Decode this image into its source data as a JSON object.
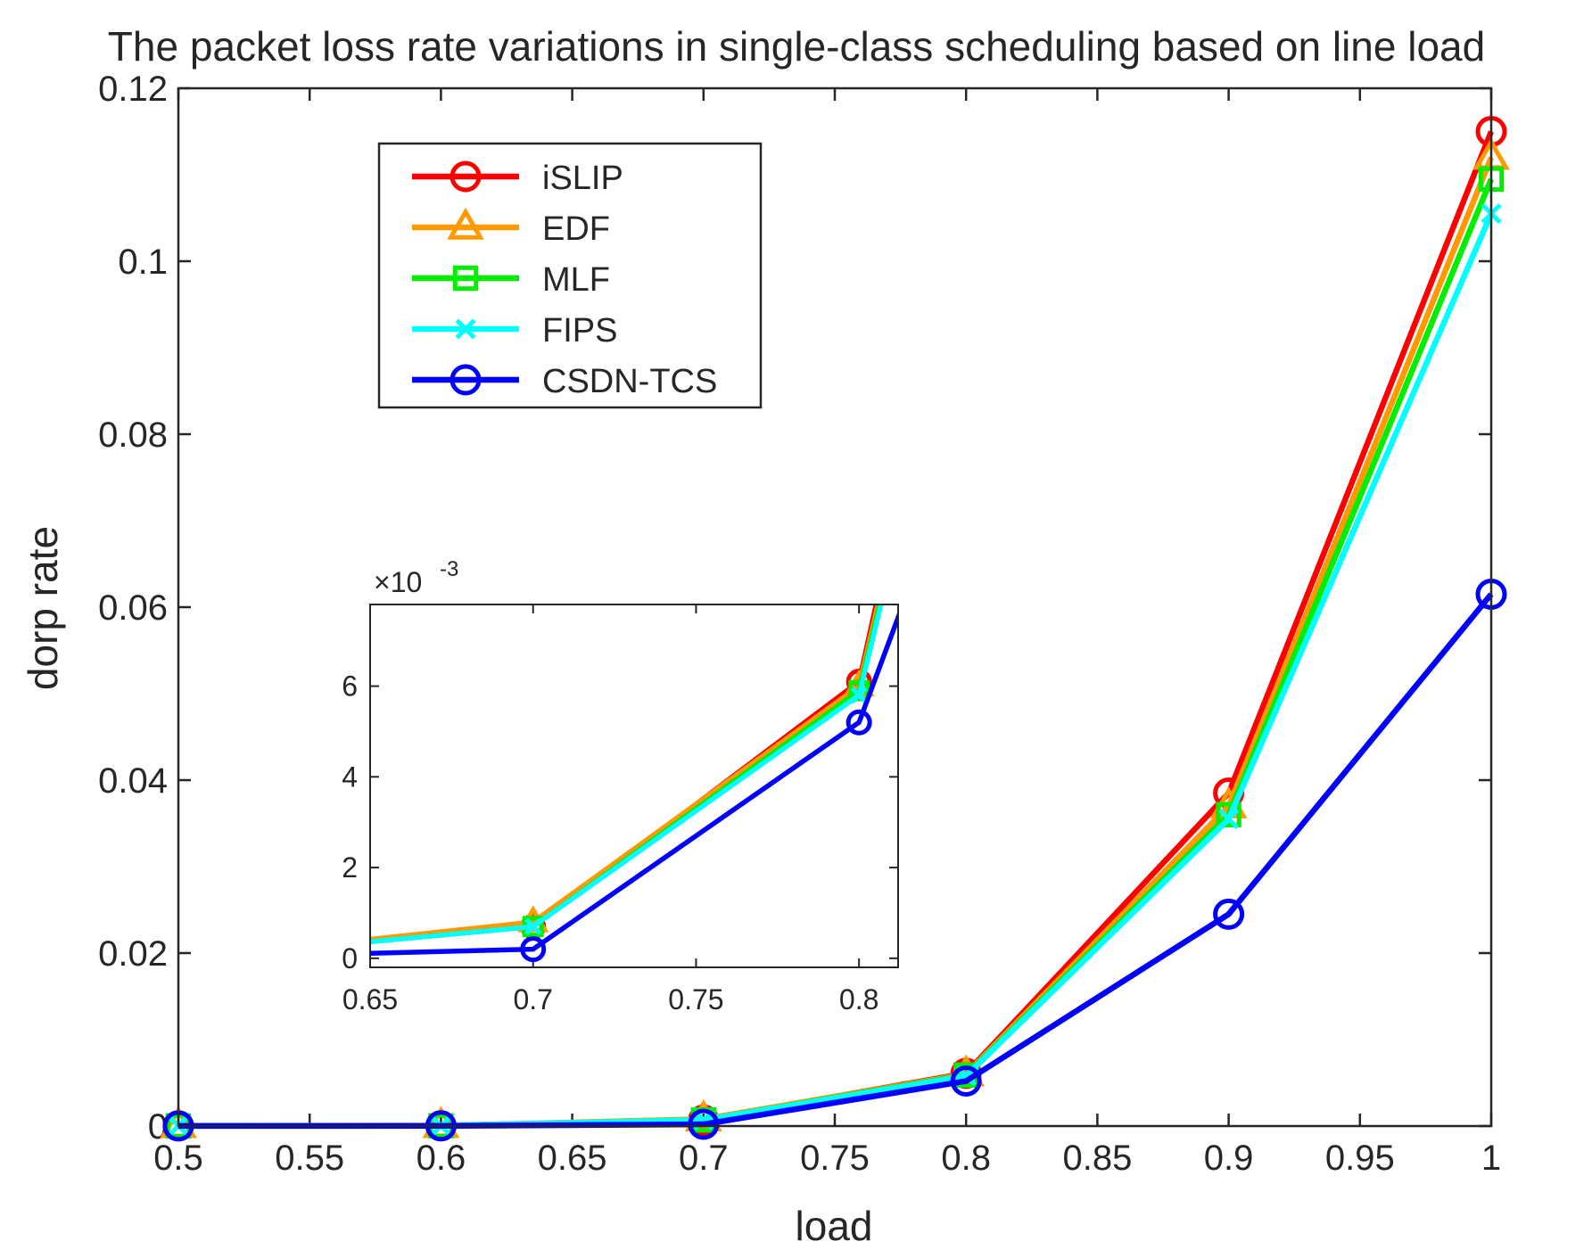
{
  "chart_data": {
    "type": "line",
    "title": "The packet loss rate variations in single-class scheduling based on line load",
    "xlabel": "load",
    "ylabel": "dorp rate",
    "x": [
      0.5,
      0.6,
      0.7,
      0.8,
      0.9,
      1.0
    ],
    "xlim": [
      0.5,
      1.0
    ],
    "ylim": [
      0,
      0.12
    ],
    "xticks": [
      "0.5",
      "0.55",
      "0.6",
      "0.65",
      "0.7",
      "0.75",
      "0.8",
      "0.85",
      "0.9",
      "0.95",
      "1"
    ],
    "yticks": [
      "0",
      "0.02",
      "0.04",
      "0.06",
      "0.08",
      "0.1",
      "0.12"
    ],
    "grid": false,
    "legend_position": "top-left",
    "series": [
      {
        "name": "iSLIP",
        "color": "#ff0000",
        "marker": "circle",
        "values": [
          2e-05,
          3e-05,
          0.0007,
          0.0061,
          0.0385,
          0.115
        ]
      },
      {
        "name": "EDF",
        "color": "#ff9900",
        "marker": "triangle",
        "values": [
          3e-05,
          4e-05,
          0.0008,
          0.006,
          0.037,
          0.112
        ]
      },
      {
        "name": "MLF",
        "color": "#00ee00",
        "marker": "square",
        "values": [
          2e-05,
          3e-05,
          0.0007,
          0.0059,
          0.036,
          0.1095
        ]
      },
      {
        "name": "FIPS",
        "color": "#00ffff",
        "marker": "x",
        "values": [
          2e-05,
          3e-05,
          0.0007,
          0.0058,
          0.0355,
          0.1055
        ]
      },
      {
        "name": "CSDN-TCS",
        "color": "#0000ff",
        "marker": "circle",
        "values": [
          1e-05,
          2e-05,
          0.0002,
          0.0052,
          0.0245,
          0.0615
        ]
      }
    ],
    "inset": {
      "xlim": [
        0.65,
        0.812
      ],
      "ylim": [
        -0.2,
        7.8
      ],
      "y_exponent_label": "×10",
      "y_exponent": "-3",
      "xticks": [
        "0.65",
        "0.7",
        "0.75",
        "0.8"
      ],
      "yticks": [
        "0",
        "2",
        "4",
        "6"
      ]
    }
  }
}
